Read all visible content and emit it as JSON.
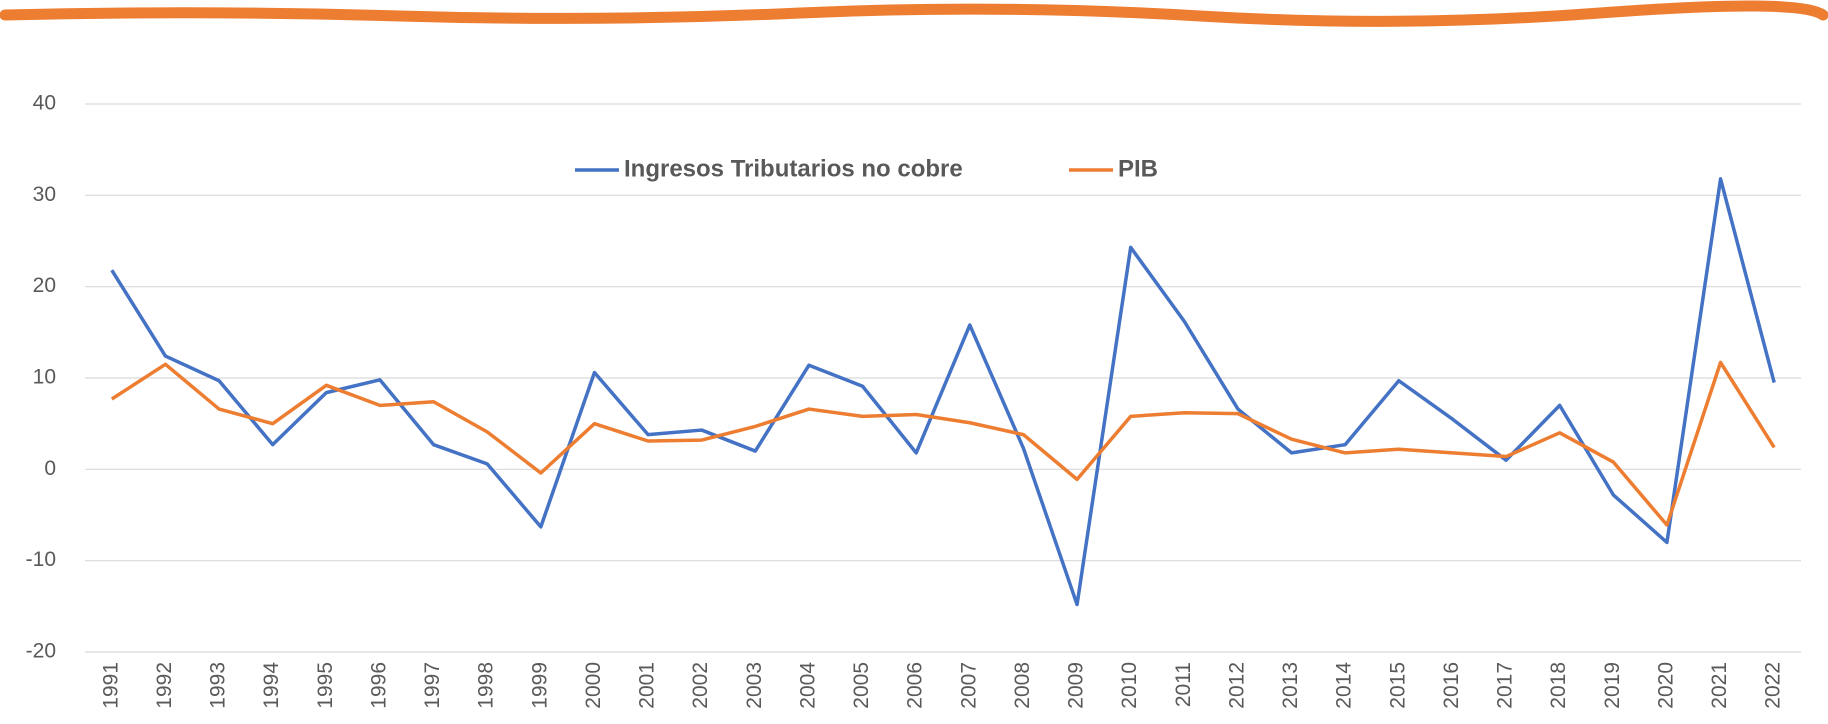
{
  "chart_data": {
    "type": "line",
    "categories": [
      "1991",
      "1992",
      "1993",
      "1994",
      "1995",
      "1996",
      "1997",
      "1998",
      "1999",
      "2000",
      "2001",
      "2002",
      "2003",
      "2004",
      "2005",
      "2006",
      "2007",
      "2008",
      "2009",
      "2010",
      "2011",
      "2012",
      "2013",
      "2014",
      "2015",
      "2016",
      "2017",
      "2018",
      "2019",
      "2020",
      "2021",
      "2022"
    ],
    "series": [
      {
        "name": "Ingresos Tributarios no cobre",
        "color": "#4472c4",
        "values": [
          21.8,
          12.4,
          9.7,
          2.7,
          8.4,
          9.8,
          2.7,
          0.6,
          -6.3,
          10.6,
          3.8,
          4.3,
          2.0,
          11.4,
          9.1,
          1.8,
          15.8,
          2.3,
          -14.8,
          24.3,
          16.2,
          6.6,
          1.8,
          2.7,
          9.7,
          5.5,
          1.0,
          7.0,
          -2.8,
          -8.0,
          31.8,
          9.5
        ]
      },
      {
        "name": "PIB",
        "color": "#ed7d31",
        "values": [
          7.7,
          11.5,
          6.6,
          5.0,
          9.2,
          7.0,
          7.4,
          4.1,
          -0.4,
          5.0,
          3.1,
          3.2,
          4.7,
          6.6,
          5.8,
          6.0,
          5.1,
          3.8,
          -1.1,
          5.8,
          6.2,
          6.1,
          3.3,
          1.8,
          2.2,
          1.8,
          1.4,
          4.0,
          0.8,
          -6.1,
          11.7,
          2.4
        ]
      }
    ],
    "ylim": [
      -20,
      40
    ],
    "yticks": [
      -20,
      -10,
      0,
      10,
      20,
      30,
      40
    ],
    "grid": true,
    "legend": "top"
  }
}
